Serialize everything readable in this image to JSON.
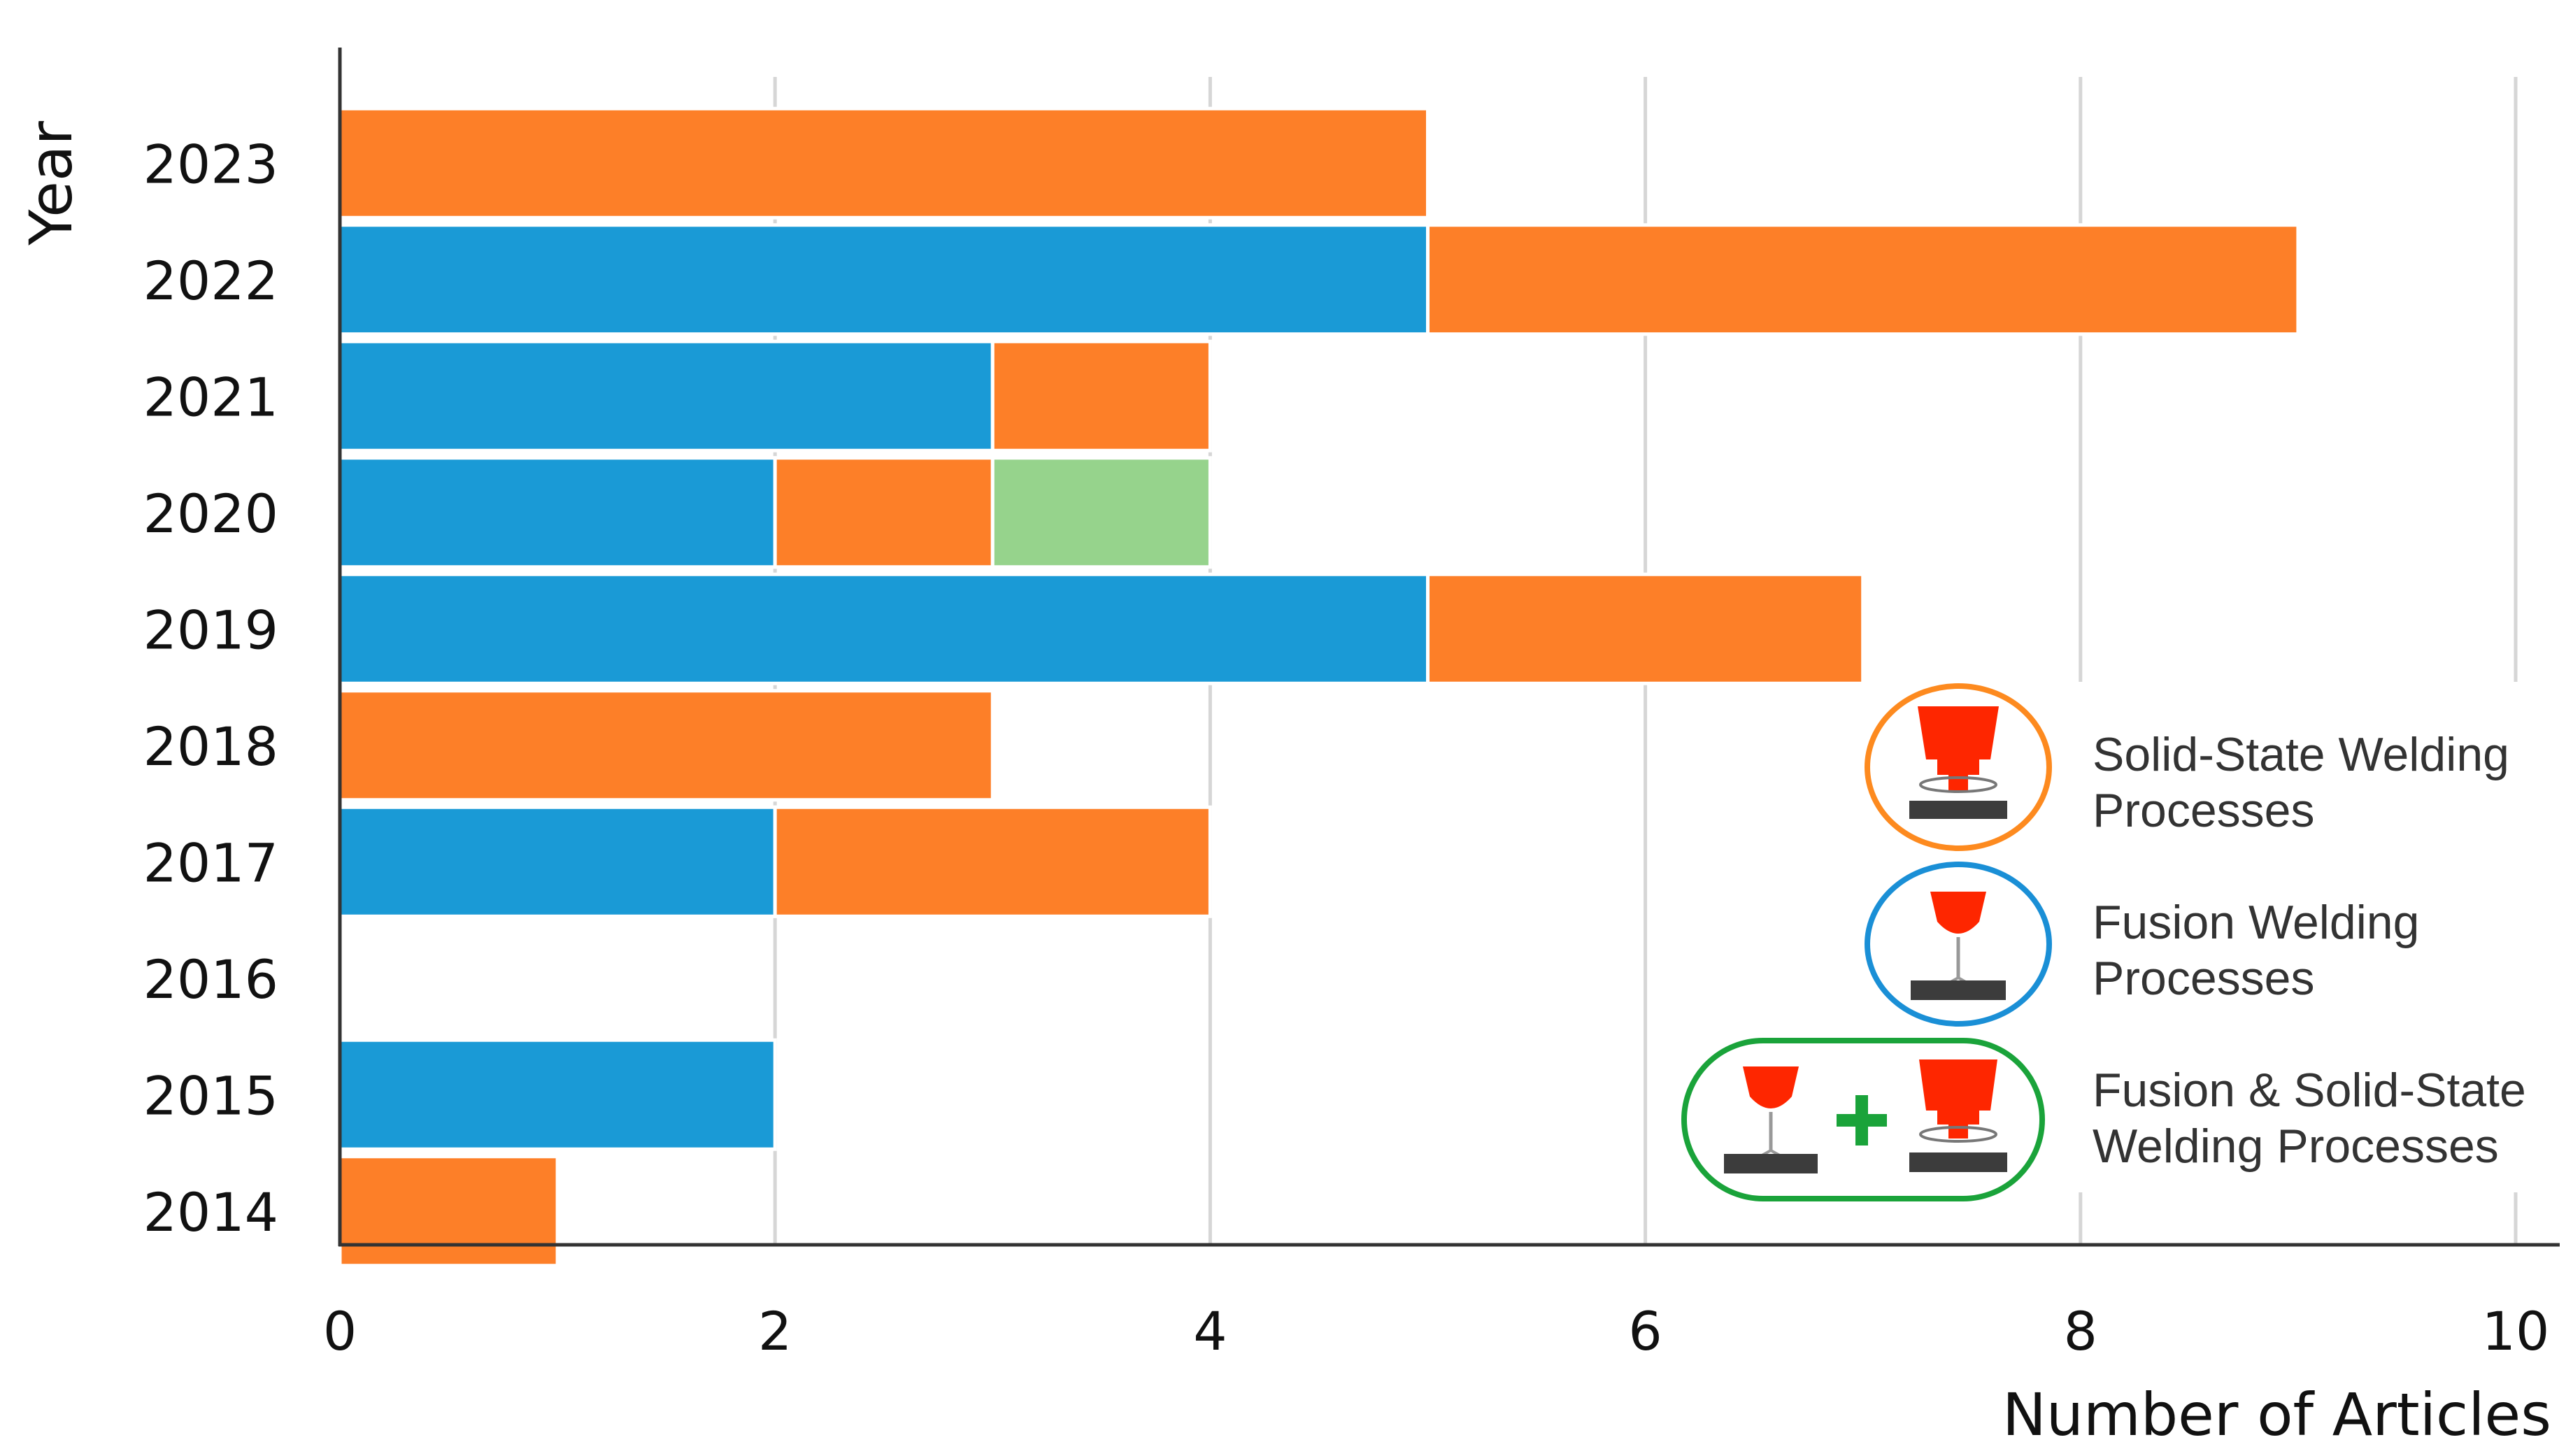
{
  "chart_data": {
    "type": "bar",
    "orientation": "horizontal",
    "stacked": true,
    "title": "",
    "xlabel": "Number of Articles",
    "ylabel": "Year",
    "xlim": [
      0,
      10
    ],
    "xticks": [
      "0",
      "2",
      "4",
      "6",
      "8",
      "10"
    ],
    "grid": true,
    "categories": [
      "2023",
      "2022",
      "2021",
      "2020",
      "2019",
      "2018",
      "2017",
      "2016",
      "2015",
      "2014"
    ],
    "series": [
      {
        "name": "Fusion Welding Processes",
        "color": "#1a9ad6",
        "values": [
          0,
          5,
          3,
          2,
          5,
          0,
          2,
          0,
          2,
          0
        ]
      },
      {
        "name": "Solid-State Welding Processes",
        "color": "#fd7f28",
        "values": [
          5,
          4,
          1,
          1,
          2,
          3,
          2,
          0,
          0,
          1
        ]
      },
      {
        "name": "Fusion & Solid-State Welding Processes",
        "color": "#96d38c",
        "values": [
          0,
          0,
          0,
          1,
          0,
          0,
          0,
          0,
          0,
          0
        ]
      }
    ],
    "legend": {
      "position": "bottom-right",
      "items": [
        {
          "line1": "Solid-State Welding",
          "line2": "Processes",
          "ring_color": "#fd8a1f",
          "icon": "friction-stir-tool-icon"
        },
        {
          "line1": "Fusion Welding",
          "line2": "Processes",
          "ring_color": "#1a8fd6",
          "icon": "fusion-torch-icon"
        },
        {
          "line1": "Fusion & Solid-State",
          "line2": "Welding Processes",
          "ring_color": "#1aa33a",
          "icon": "hybrid-welding-icon",
          "plus_color": "#1aa33a"
        }
      ]
    }
  }
}
